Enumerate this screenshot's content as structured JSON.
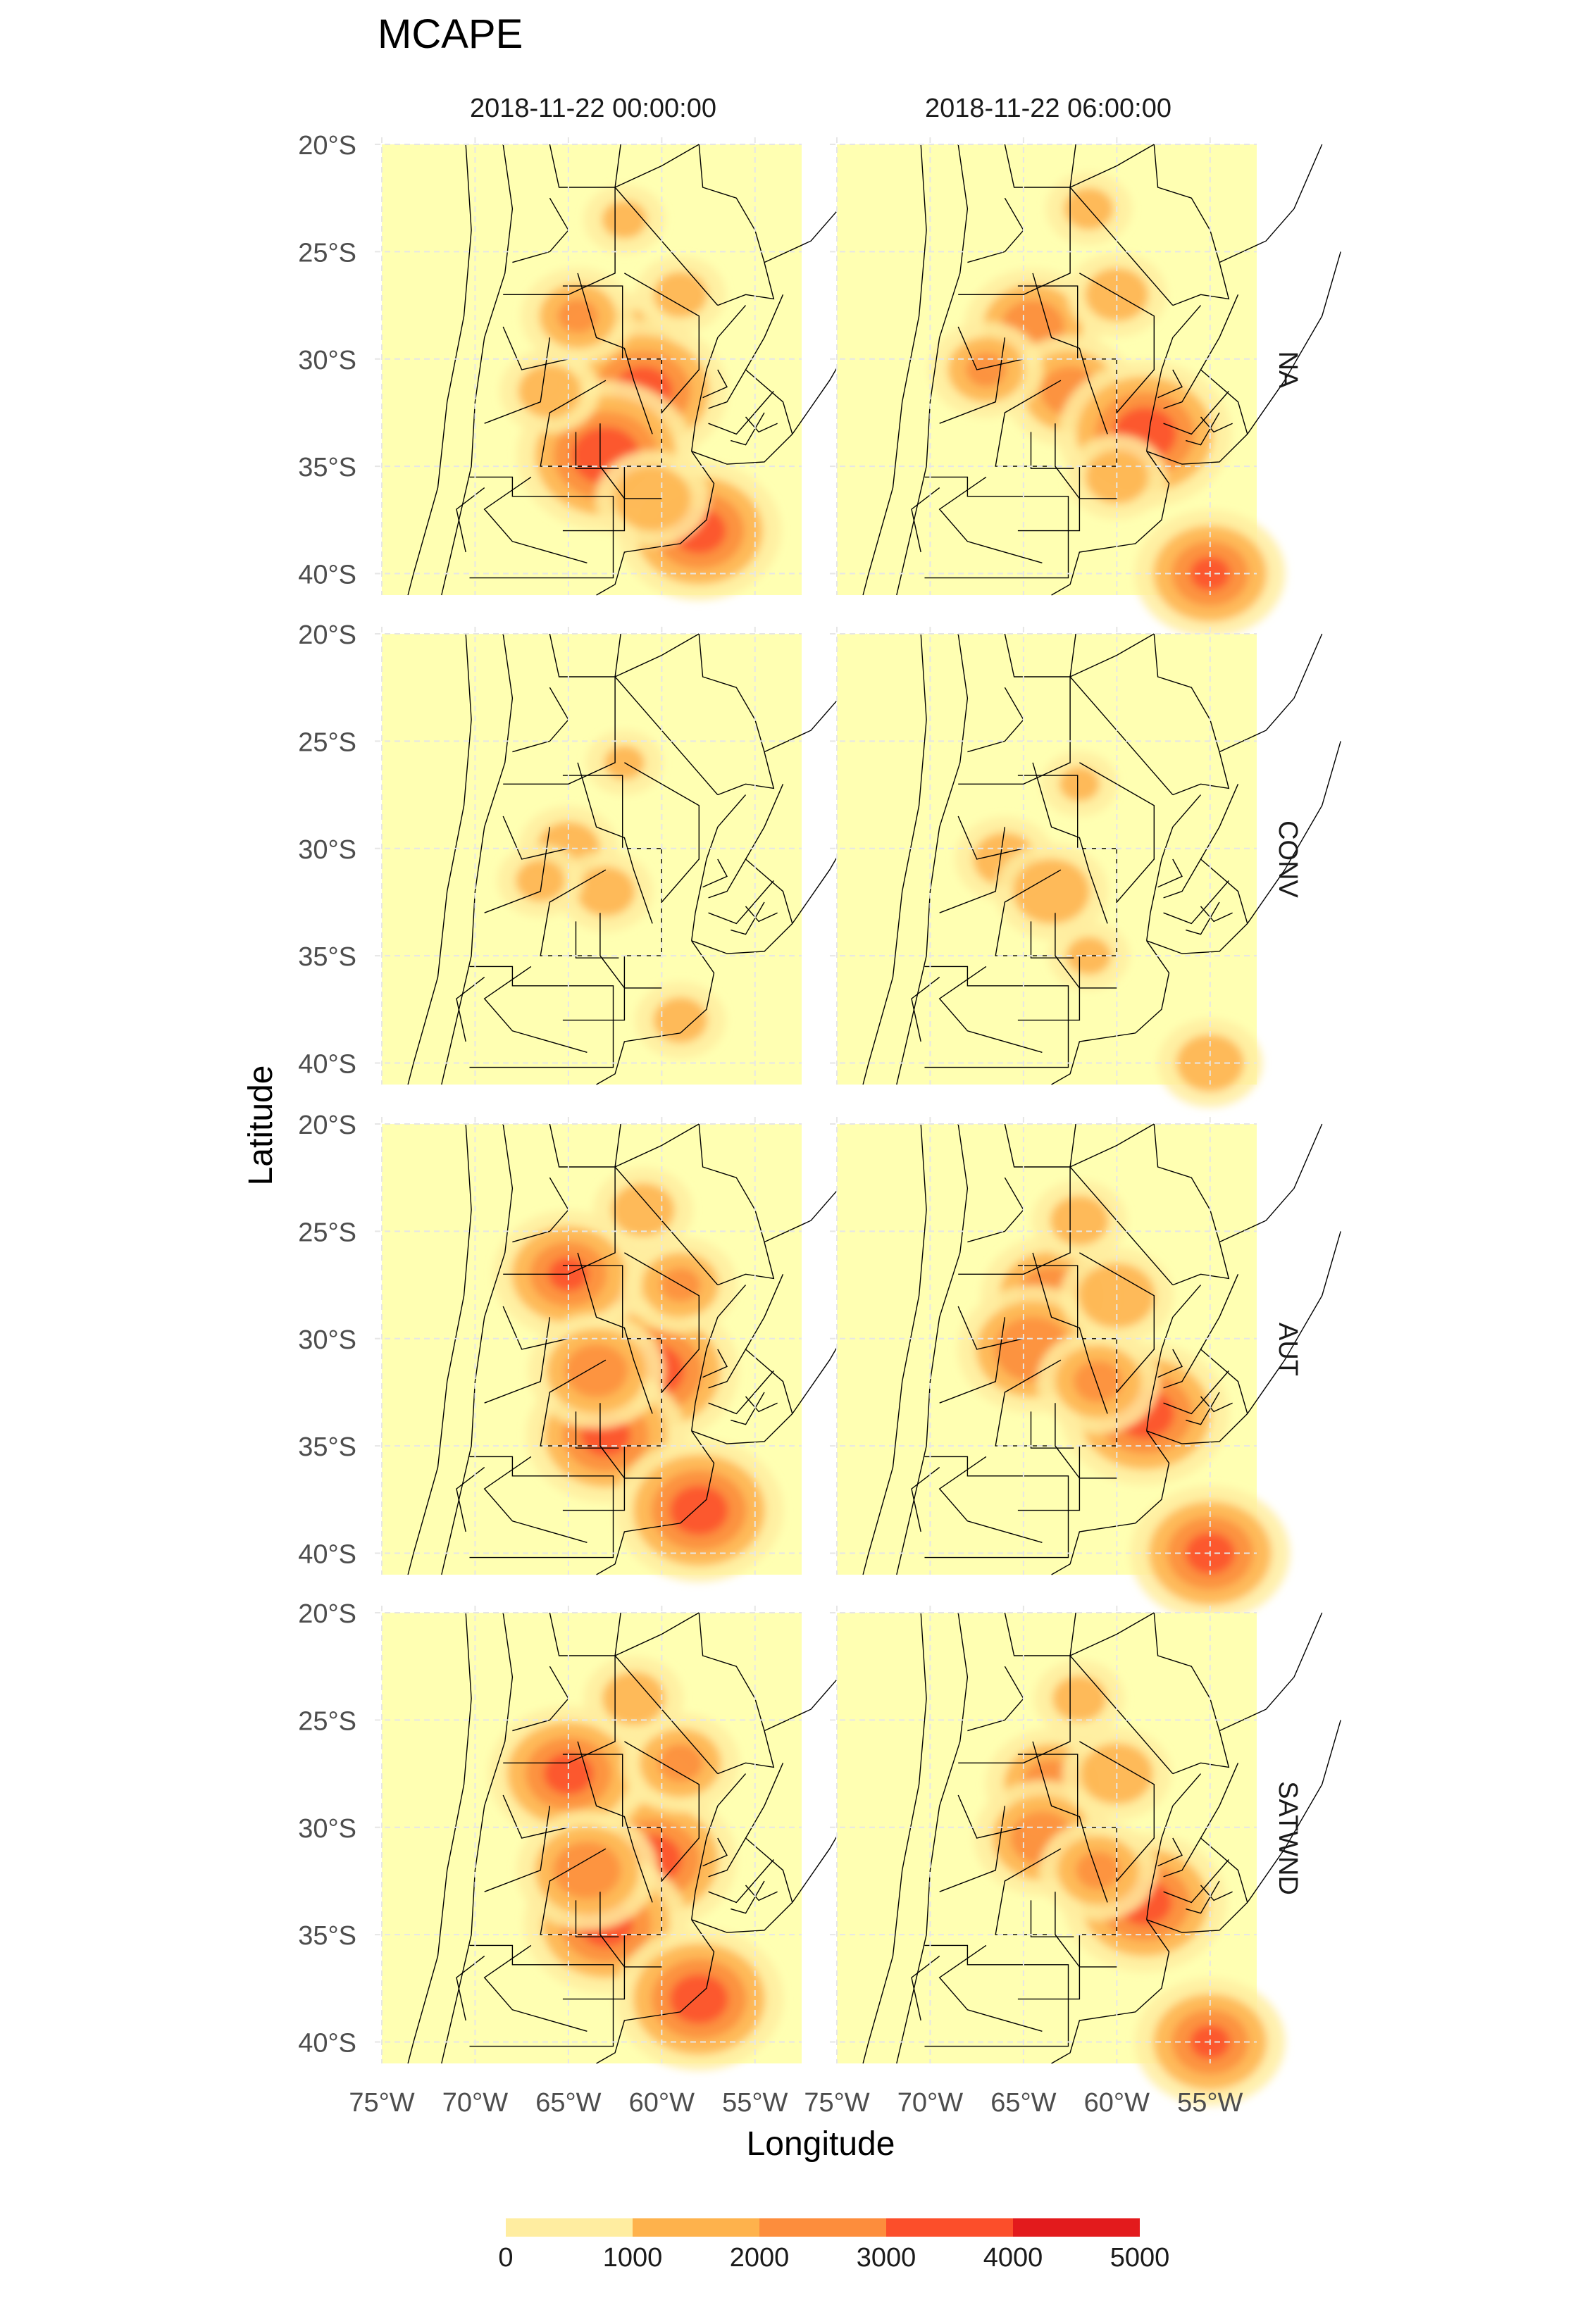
{
  "chart_data": {
    "type": "heatmap",
    "title": "MCAPE",
    "xlabel": "Longitude",
    "ylabel": "Latitude",
    "columns": [
      "2018-11-22 00:00:00",
      "2018-11-22 06:00:00"
    ],
    "rows": [
      "NA",
      "CONV",
      "AUT",
      "SATWND"
    ],
    "x_ticks": [
      "75°W",
      "70°W",
      "65°W",
      "60°W",
      "55°W"
    ],
    "y_ticks": [
      "20°S",
      "25°S",
      "30°S",
      "35°S",
      "40°S"
    ],
    "x_range": [
      -75,
      -52.5
    ],
    "y_range": [
      -41,
      -20
    ],
    "legend": {
      "placement": "bottom",
      "breaks": [
        "0",
        "1000",
        "2000",
        "3000",
        "4000",
        "5000"
      ],
      "colors": [
        "#ffeda0",
        "#feb24c",
        "#fd8d3c",
        "#fc4e2a",
        "#e31a1c"
      ]
    },
    "background_color": "#ffffb2",
    "grid": true,
    "hotspots": {
      "NA": {
        "2018-11-22 00:00:00": [
          {
            "lon": -62.0,
            "lat": -29.5,
            "val": 2400
          },
          {
            "lon": -61.0,
            "lat": -31.5,
            "val": 3400
          },
          {
            "lon": -63.0,
            "lat": -34.5,
            "val": 3600
          },
          {
            "lon": -58.0,
            "lat": -38.0,
            "val": 3300
          },
          {
            "lon": -64.5,
            "lat": -28.0,
            "val": 2000
          },
          {
            "lon": -66.0,
            "lat": -31.5,
            "val": 1500
          },
          {
            "lon": -59.0,
            "lat": -27.0,
            "val": 1300
          },
          {
            "lon": -60.5,
            "lat": -36.5,
            "val": 1800
          },
          {
            "lon": -62.0,
            "lat": -23.5,
            "val": 1100
          }
        ],
        "2018-11-22 06:00:00": [
          {
            "lon": -64.5,
            "lat": -28.5,
            "val": 2500
          },
          {
            "lon": -62.5,
            "lat": -31.5,
            "val": 2400
          },
          {
            "lon": -58.5,
            "lat": -33.5,
            "val": 3500
          },
          {
            "lon": -67.0,
            "lat": -30.5,
            "val": 2000
          },
          {
            "lon": -55.0,
            "lat": -40.0,
            "val": 3000
          },
          {
            "lon": -60.0,
            "lat": -35.5,
            "val": 1500
          },
          {
            "lon": -61.5,
            "lat": -23.0,
            "val": 1200
          },
          {
            "lon": -60.0,
            "lat": -27.0,
            "val": 1500
          }
        ]
      },
      "CONV": {
        "2018-11-22 00:00:00": [
          {
            "lon": -65.0,
            "lat": -30.0,
            "val": 1500
          },
          {
            "lon": -63.0,
            "lat": -32.0,
            "val": 1400
          },
          {
            "lon": -59.0,
            "lat": -38.0,
            "val": 1300
          },
          {
            "lon": -62.0,
            "lat": -26.0,
            "val": 1000
          },
          {
            "lon": -66.5,
            "lat": -31.5,
            "val": 1200
          }
        ],
        "2018-11-22 06:00:00": [
          {
            "lon": -66.0,
            "lat": -30.5,
            "val": 1500
          },
          {
            "lon": -63.5,
            "lat": -32.0,
            "val": 1800
          },
          {
            "lon": -55.0,
            "lat": -40.0,
            "val": 1600
          },
          {
            "lon": -62.0,
            "lat": -27.0,
            "val": 1000
          },
          {
            "lon": -61.5,
            "lat": -35.0,
            "val": 1100
          }
        ]
      },
      "AUT": {
        "2018-11-22 00:00:00": [
          {
            "lon": -62.5,
            "lat": -28.5,
            "val": 3000
          },
          {
            "lon": -60.5,
            "lat": -31.5,
            "val": 3500
          },
          {
            "lon": -65.0,
            "lat": -27.0,
            "val": 3000
          },
          {
            "lon": -63.0,
            "lat": -34.5,
            "val": 3200
          },
          {
            "lon": -58.0,
            "lat": -38.0,
            "val": 3400
          },
          {
            "lon": -63.5,
            "lat": -31.5,
            "val": 2500
          },
          {
            "lon": -59.0,
            "lat": -27.5,
            "val": 2000
          },
          {
            "lon": -61.0,
            "lat": -24.0,
            "val": 1500
          }
        ],
        "2018-11-22 06:00:00": [
          {
            "lon": -63.5,
            "lat": -28.0,
            "val": 2600
          },
          {
            "lon": -64.5,
            "lat": -30.5,
            "val": 2800
          },
          {
            "lon": -58.5,
            "lat": -33.5,
            "val": 3400
          },
          {
            "lon": -55.0,
            "lat": -40.0,
            "val": 3200
          },
          {
            "lon": -61.0,
            "lat": -32.0,
            "val": 2200
          },
          {
            "lon": -60.0,
            "lat": -28.0,
            "val": 1800
          },
          {
            "lon": -62.0,
            "lat": -24.5,
            "val": 1400
          }
        ]
      },
      "SATWND": {
        "2018-11-22 00:00:00": [
          {
            "lon": -62.0,
            "lat": -29.0,
            "val": 2900
          },
          {
            "lon": -60.5,
            "lat": -31.5,
            "val": 3400
          },
          {
            "lon": -65.0,
            "lat": -27.5,
            "val": 3200
          },
          {
            "lon": -63.0,
            "lat": -34.5,
            "val": 3300
          },
          {
            "lon": -58.0,
            "lat": -38.0,
            "val": 3400
          },
          {
            "lon": -64.0,
            "lat": -32.0,
            "val": 2600
          },
          {
            "lon": -59.0,
            "lat": -27.0,
            "val": 2100
          },
          {
            "lon": -61.5,
            "lat": -24.0,
            "val": 1500
          }
        ],
        "2018-11-22 06:00:00": [
          {
            "lon": -63.5,
            "lat": -28.0,
            "val": 2400
          },
          {
            "lon": -64.0,
            "lat": -30.5,
            "val": 2500
          },
          {
            "lon": -58.5,
            "lat": -33.5,
            "val": 3300
          },
          {
            "lon": -55.0,
            "lat": -40.0,
            "val": 3000
          },
          {
            "lon": -61.0,
            "lat": -32.0,
            "val": 2100
          },
          {
            "lon": -60.0,
            "lat": -27.5,
            "val": 1700
          },
          {
            "lon": -62.0,
            "lat": -24.0,
            "val": 1300
          }
        ]
      }
    }
  }
}
